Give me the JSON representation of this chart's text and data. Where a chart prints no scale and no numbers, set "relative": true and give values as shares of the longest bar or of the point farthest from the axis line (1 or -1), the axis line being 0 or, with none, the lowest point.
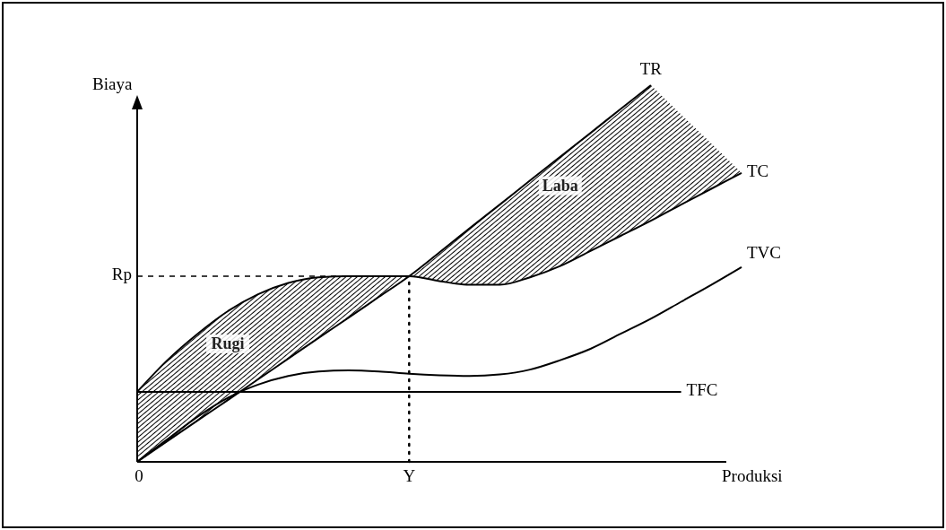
{
  "chart_data": {
    "type": "line",
    "relative": true,
    "xlabel": "Produksi",
    "ylabel": "Biaya",
    "marker": "none",
    "line_style": "solid",
    "categories": [
      null,
      null,
      null,
      null,
      null,
      null,
      null,
      null,
      null,
      null,
      null,
      null,
      null,
      null,
      null,
      null,
      null,
      null,
      null,
      null,
      null
    ],
    "series": [
      {
        "name": "TR",
        "color": "#000000",
        "values": [
          0,
          0.055,
          0.11,
          0.164,
          0.219,
          0.274,
          0.329,
          0.383,
          0.438,
          0.493,
          0.556,
          0.62,
          0.683,
          0.747,
          0.81,
          0.873,
          0.937,
          1,
          null,
          null,
          null
        ]
      },
      {
        "name": "TC",
        "color": "#000000",
        "values": [
          0.186,
          0.27,
          0.34,
          0.4,
          0.445,
          0.475,
          0.49,
          0.493,
          0.493,
          0.493,
          0.48,
          0.47,
          0.47,
          0.49,
          0.52,
          0.56,
          0.6,
          0.64,
          0.683,
          0.725,
          0.767
        ],
        "lower": [
          0,
          0.055,
          0.11,
          0.164,
          0.219,
          0.274,
          0.329,
          0.383,
          0.438,
          0.493,
          0.48,
          0.47,
          0.47,
          0.49,
          0.52,
          0.56,
          0.6,
          0.64,
          0.683,
          0.725,
          0.767
        ],
        "upper": [
          0.186,
          0.27,
          0.34,
          0.4,
          0.445,
          0.475,
          0.49,
          0.493,
          0.493,
          0.493,
          0.556,
          0.62,
          0.683,
          0.747,
          0.81,
          0.873,
          0.937,
          1,
          0.922,
          0.845,
          0.767
        ]
      },
      {
        "name": "TVC",
        "color": "#000000",
        "values": [
          0,
          0.06,
          0.12,
          0.17,
          0.205,
          0.228,
          0.24,
          0.243,
          0.24,
          0.234,
          0.23,
          0.228,
          0.232,
          0.245,
          0.27,
          0.3,
          0.34,
          0.38,
          0.425,
          0.47,
          0.517
        ]
      },
      {
        "name": "TFC",
        "color": "#000000",
        "values": [
          0.186,
          0.186,
          0.186,
          0.186,
          0.186,
          0.186,
          0.186,
          0.186,
          0.186,
          0.186,
          0.186,
          0.186,
          0.186,
          0.186,
          0.186,
          0.186,
          0.186,
          0.186,
          0.186,
          null,
          null
        ]
      }
    ],
    "ref_lines": [
      {
        "axis": "y",
        "value": 0.493,
        "label": "Rp",
        "line_style": "dashed"
      }
    ],
    "annotations": [
      "0",
      "Y",
      "Rugi",
      "Laba"
    ]
  }
}
